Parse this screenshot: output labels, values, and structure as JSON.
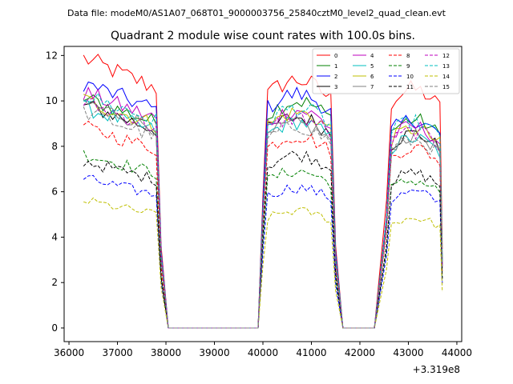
{
  "header": {
    "suptitle": "Data file: modeM0/AS1A07_068T01_9000003756_25840cztM0_level2_quad_clean.evt"
  },
  "chart_data": {
    "type": "line",
    "title": "Quadrant 2 module wise count rates with 100.0s bins.",
    "xlabel": "",
    "ylabel": "",
    "x_offset_label": "+3.319e8",
    "xlim": [
      35900,
      44100
    ],
    "ylim": [
      -0.6,
      12.4
    ],
    "xticks": [
      36000,
      37000,
      38000,
      39000,
      40000,
      41000,
      42000,
      43000,
      44000
    ],
    "yticks": [
      0,
      2,
      4,
      6,
      8,
      10,
      12
    ],
    "legend_position": "top-right",
    "segments": [
      {
        "start": 36300,
        "end": 37800,
        "dwell": [
          38050,
          39900
        ]
      },
      {
        "start": 40000,
        "end": 41400,
        "dwell": [
          41650,
          42300
        ]
      },
      {
        "start": 42550,
        "end": 43600,
        "dwell": null
      }
    ],
    "series": [
      {
        "name": "0",
        "color": "#ff0000",
        "dash": "solid",
        "levels": [
          11.0,
          10.6,
          10.2
        ]
      },
      {
        "name": "1",
        "color": "#008000",
        "dash": "solid",
        "levels": [
          9.4,
          9.7,
          8.9
        ]
      },
      {
        "name": "2",
        "color": "#0000ff",
        "dash": "solid",
        "levels": [
          10.0,
          10.0,
          8.9
        ]
      },
      {
        "name": "3",
        "color": "#000000",
        "dash": "solid",
        "levels": [
          9.1,
          9.0,
          8.3
        ]
      },
      {
        "name": "4",
        "color": "#bf00bf",
        "dash": "solid",
        "levels": [
          9.6,
          9.3,
          8.6
        ]
      },
      {
        "name": "5",
        "color": "#00bfbf",
        "dash": "solid",
        "levels": [
          9.0,
          8.8,
          8.1
        ]
      },
      {
        "name": "6",
        "color": "#bfbf00",
        "dash": "solid",
        "levels": [
          9.3,
          9.2,
          8.5
        ]
      },
      {
        "name": "7",
        "color": "#808080",
        "dash": "solid",
        "levels": [
          9.2,
          8.7,
          8.2
        ]
      },
      {
        "name": "8",
        "color": "#ff0000",
        "dash": "dashed",
        "levels": [
          8.2,
          8.2,
          7.7
        ]
      },
      {
        "name": "9",
        "color": "#008000",
        "dash": "dashed",
        "levels": [
          7.1,
          6.7,
          6.3
        ]
      },
      {
        "name": "10",
        "color": "#0000ff",
        "dash": "dashed",
        "levels": [
          6.1,
          6.0,
          5.8
        ]
      },
      {
        "name": "11",
        "color": "#000000",
        "dash": "dashed",
        "levels": [
          6.8,
          7.4,
          6.6
        ]
      },
      {
        "name": "12",
        "color": "#bf00bf",
        "dash": "dashed",
        "levels": [
          9.2,
          9.0,
          8.4
        ]
      },
      {
        "name": "13",
        "color": "#00bfbf",
        "dash": "dashed",
        "levels": [
          9.5,
          9.4,
          8.8
        ]
      },
      {
        "name": "14",
        "color": "#bfbf00",
        "dash": "dashed",
        "levels": [
          5.2,
          5.0,
          4.7
        ]
      },
      {
        "name": "15",
        "color": "#808080",
        "dash": "dashed",
        "levels": [
          8.8,
          8.6,
          8.0
        ]
      }
    ]
  }
}
